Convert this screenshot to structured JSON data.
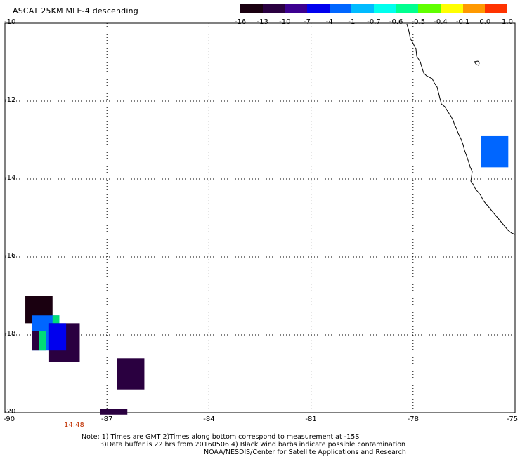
{
  "title": "ASCAT 25KM MLE-4 descending",
  "colorbar": {
    "labels": [
      "-16",
      "-13",
      "-10",
      "-7",
      "-4",
      "-1",
      "-0.7",
      "-0.6",
      "-0.5",
      "-0.4",
      "-0.1",
      "0.0",
      "1.0"
    ],
    "colors": [
      "#1a0010",
      "#2a0040",
      "#3c0090",
      "#0000ee",
      "#0066ff",
      "#00bbff",
      "#00ffee",
      "#00ff90",
      "#60ff00",
      "#ffff00",
      "#ff9900",
      "#ff3300"
    ]
  },
  "axes": {
    "lat_labels": [
      "-10",
      "-12",
      "-14",
      "-16",
      "-18",
      "-20"
    ],
    "lon_labels": [
      "-90",
      "-87",
      "-84",
      "-81",
      "-78",
      "-75"
    ],
    "lat_range": [
      -20,
      -10
    ],
    "lon_range": [
      -90,
      -75
    ],
    "grid": "dotted"
  },
  "timestamp": "14:48",
  "notes": [
    "Note: 1) Times are GMT 2)Times along bottom correspond to measurement at -15S",
    "3)Data buffer is 22 hrs from 20160506 4) Black wind barbs indicate possible contamination",
    "NOAA/NESDIS/Center for Satellite Applications and Research"
  ],
  "data_cells": [
    {
      "lon": [
        -89.4,
        -88.6
      ],
      "lat": [
        -17.7,
        -17.0
      ],
      "color": "#1a0010"
    },
    {
      "lon": [
        -89.2,
        -88.4
      ],
      "lat": [
        -18.4,
        -17.5
      ],
      "color": "#0066ff"
    },
    {
      "lon": [
        -89.2,
        -89.0
      ],
      "lat": [
        -18.4,
        -17.9
      ],
      "color": "#2a0040"
    },
    {
      "lon": [
        -89.0,
        -88.8
      ],
      "lat": [
        -18.4,
        -17.9
      ],
      "color": "#00dd77"
    },
    {
      "lon": [
        -88.6,
        -88.4
      ],
      "lat": [
        -17.9,
        -17.5
      ],
      "color": "#00dd77"
    },
    {
      "lon": [
        -88.7,
        -87.8
      ],
      "lat": [
        -18.7,
        -17.7
      ],
      "color": "#2a0040"
    },
    {
      "lon": [
        -88.7,
        -88.2
      ],
      "lat": [
        -18.4,
        -17.7
      ],
      "color": "#0000ee"
    },
    {
      "lon": [
        -86.7,
        -85.9
      ],
      "lat": [
        -19.4,
        -18.6
      ],
      "color": "#2a0040"
    },
    {
      "lon": [
        -87.2,
        -86.4
      ],
      "lat": [
        -20.05,
        -19.9
      ],
      "color": "#2a0040"
    },
    {
      "lon": [
        -76.0,
        -75.2
      ],
      "lat": [
        -13.7,
        -12.9
      ],
      "color": "#0066ff"
    }
  ]
}
